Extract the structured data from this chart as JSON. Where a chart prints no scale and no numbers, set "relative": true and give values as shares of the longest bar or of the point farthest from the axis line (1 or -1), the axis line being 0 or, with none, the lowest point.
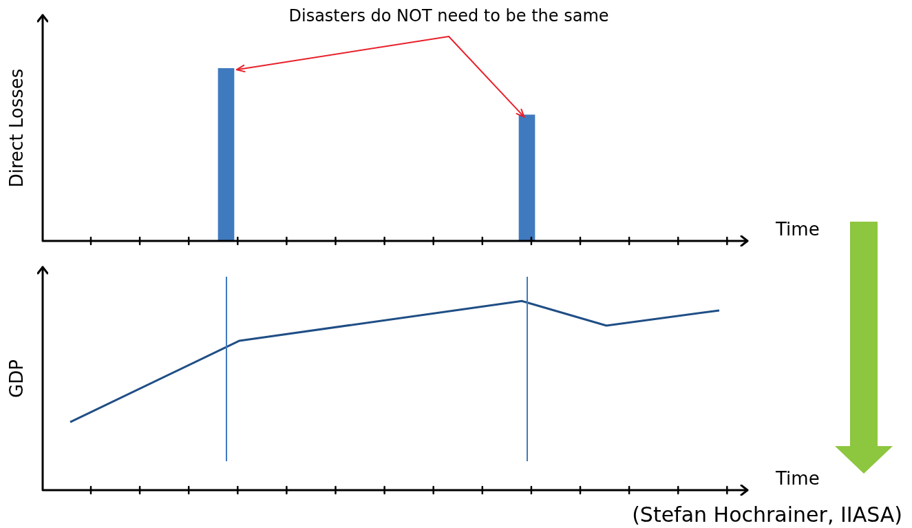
{
  "chart_data": [
    {
      "type": "bar",
      "ylabel": "Direct Losses",
      "xlabel": "Time",
      "annotations": [
        "Disasters do NOT need to be the same"
      ],
      "categories": [
        null,
        null
      ],
      "values": [
        1,
        0.73
      ],
      "color": "#3f7abf",
      "relative": true
    },
    {
      "type": "line",
      "ylabel": "GDP",
      "xlabel": "Time",
      "annotations": [
        "(Stefan Hochrainer, IIASA)"
      ],
      "categories": [
        null,
        null,
        null,
        null,
        null,
        null,
        null,
        null,
        null,
        null,
        null,
        null,
        null,
        null,
        null,
        null,
        null,
        null,
        null,
        null,
        null,
        null,
        null,
        null,
        null,
        null
      ],
      "values": [
        null,
        0.36,
        null,
        null,
        null,
        null,
        null,
        0.79,
        null,
        null,
        null,
        null,
        null,
        null,
        null,
        null,
        null,
        1,
        null,
        null,
        0.87,
        null,
        null,
        null,
        0.95,
        null
      ],
      "color": "#1f4e85",
      "relative": true
    }
  ]
}
